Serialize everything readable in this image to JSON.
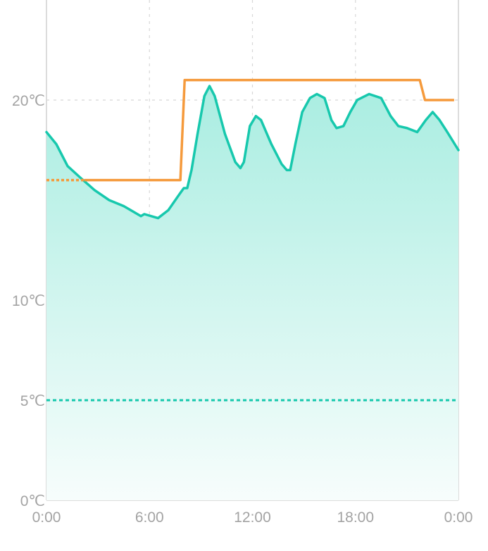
{
  "chart_data": {
    "type": "line",
    "title": "",
    "xlabel": "",
    "ylabel": "",
    "xlim": [
      0,
      24
    ],
    "ylim": [
      0,
      25
    ],
    "x_ticks": [
      {
        "value": 0,
        "label": "0:00"
      },
      {
        "value": 6,
        "label": "6:00"
      },
      {
        "value": 12,
        "label": "12:00"
      },
      {
        "value": 18,
        "label": "18:00"
      },
      {
        "value": 24,
        "label": "0:00"
      }
    ],
    "y_ticks": [
      {
        "value": 0,
        "label": "0℃"
      },
      {
        "value": 5,
        "label": "5℃"
      },
      {
        "value": 10,
        "label": "10℃"
      },
      {
        "value": 20,
        "label": "20℃"
      }
    ],
    "grid": true,
    "colors": {
      "temperature": "#17c8ad",
      "setpoint": "#f59a3c",
      "fill_top": "#a9ede1",
      "fill_bottom": "#f7fdfc",
      "grid": "#d8d8d8",
      "axis": "#d0d0d0"
    },
    "series": [
      {
        "kind": "temperature-area",
        "x": [
          0,
          0.57,
          1.23,
          2,
          2.8,
          3.65,
          4.5,
          5.1,
          5.5,
          5.7,
          6.5,
          7.1,
          7.75,
          8.0,
          8.2,
          8.45,
          8.8,
          9.2,
          9.5,
          9.8,
          10.4,
          11.0,
          11.3,
          11.5,
          11.85,
          12.2,
          12.5,
          13.1,
          13.7,
          14.0,
          14.2,
          14.5,
          14.9,
          15.35,
          15.75,
          16.2,
          16.6,
          16.9,
          17.3,
          17.7,
          18.1,
          18.8,
          19.5,
          20.05,
          20.5,
          21.0,
          21.6,
          22.1,
          22.5,
          22.9,
          23.35,
          24
        ],
        "y": [
          18.4,
          17.8,
          16.7,
          16.1,
          15.5,
          15.0,
          14.7,
          14.4,
          14.2,
          14.3,
          14.1,
          14.5,
          15.3,
          15.6,
          15.6,
          16.5,
          18.3,
          20.2,
          20.7,
          20.2,
          18.3,
          16.9,
          16.6,
          16.9,
          18.7,
          19.2,
          19.0,
          17.8,
          16.8,
          16.5,
          16.5,
          17.8,
          19.4,
          20.1,
          20.3,
          20.1,
          19.0,
          18.6,
          18.7,
          19.4,
          20.0,
          20.3,
          20.1,
          19.2,
          18.7,
          18.6,
          18.4,
          19.0,
          19.4,
          19.0,
          18.4,
          17.5
        ]
      },
      {
        "kind": "setpoint-step",
        "segments": [
          {
            "x": [
              0,
              2.2
            ],
            "y": [
              16,
              16
            ],
            "style": "dotted"
          },
          {
            "x": [
              2.2,
              7.8,
              8.05,
              21.75,
              22.05,
              23.75
            ],
            "y": [
              16,
              16,
              21,
              21,
              20,
              20
            ],
            "style": "solid"
          }
        ]
      },
      {
        "kind": "threshold",
        "x": [
          0,
          24
        ],
        "y": [
          5,
          5
        ],
        "style": "dashed"
      }
    ]
  }
}
